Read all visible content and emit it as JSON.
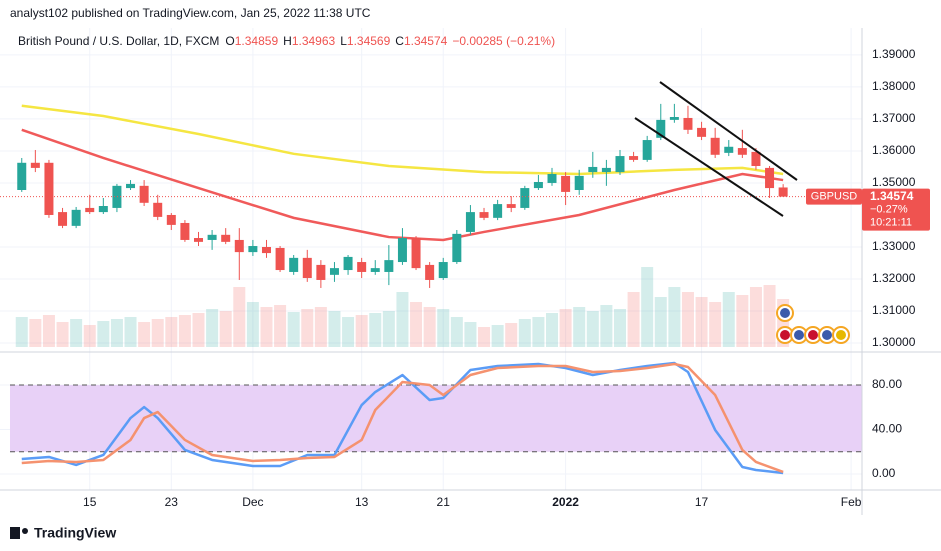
{
  "header": "analyst102 published on TradingView.com, Jan 25, 2022 11:38 UTC",
  "footer": "TradingView",
  "chart_data": [
    {
      "type": "candlestick",
      "title": "British Pound / U.S. Dollar, 1D, FXCM",
      "ohlc_labels": [
        "O",
        "H",
        "L",
        "C"
      ],
      "change": "−0.00285 (−0.21%)",
      "symbol": "GBPUSD",
      "last_change": "−0.27%",
      "countdown": "10:21:11",
      "up_color": "#26a69a",
      "down_color": "#ef5350",
      "open": [
        1.3478,
        1.3563,
        1.3563,
        1.3409,
        1.3366,
        1.3422,
        1.3409,
        1.3422,
        1.3484,
        1.3491,
        1.3438,
        1.34,
        1.3375,
        1.3328,
        1.3322,
        1.3338,
        1.3322,
        1.3284,
        1.33,
        1.3297,
        1.3222,
        1.3266,
        1.3244,
        1.3213,
        1.3228,
        1.3253,
        1.3222,
        1.3222,
        1.3253,
        1.3328,
        1.3244,
        1.3203,
        1.3253,
        1.3347,
        1.3409,
        1.3391,
        1.3434,
        1.3422,
        1.3484,
        1.35,
        1.3522,
        1.3478,
        1.3534,
        1.3534,
        1.3534,
        1.3584,
        1.3572,
        1.3641,
        1.3697,
        1.3703,
        1.3672,
        1.3641,
        1.3594,
        1.3609,
        1.3597,
        1.3547,
        1.34859
      ],
      "high": [
        1.3578,
        1.3603,
        1.3572,
        1.3422,
        1.3425,
        1.3463,
        1.3453,
        1.3497,
        1.3509,
        1.3509,
        1.3463,
        1.3406,
        1.3384,
        1.3347,
        1.3353,
        1.3359,
        1.3359,
        1.3322,
        1.3322,
        1.3303,
        1.3275,
        1.3291,
        1.3259,
        1.3253,
        1.3275,
        1.3266,
        1.3259,
        1.3306,
        1.3359,
        1.3334,
        1.3253,
        1.3266,
        1.3353,
        1.3431,
        1.3422,
        1.3447,
        1.3459,
        1.3491,
        1.3525,
        1.3547,
        1.3534,
        1.3541,
        1.3597,
        1.3572,
        1.3603,
        1.3597,
        1.3647,
        1.3747,
        1.3747,
        1.3741,
        1.3691,
        1.3672,
        1.3634,
        1.3666,
        1.3609,
        1.3553,
        1.34963
      ],
      "low": [
        1.3472,
        1.3534,
        1.3391,
        1.3359,
        1.3359,
        1.3403,
        1.3403,
        1.3409,
        1.3478,
        1.3428,
        1.3384,
        1.3353,
        1.3316,
        1.3303,
        1.3291,
        1.3309,
        1.3197,
        1.3272,
        1.3266,
        1.3222,
        1.3213,
        1.3191,
        1.3172,
        1.3191,
        1.3213,
        1.3203,
        1.3213,
        1.3181,
        1.3244,
        1.3228,
        1.3172,
        1.3197,
        1.3247,
        1.3338,
        1.3384,
        1.3384,
        1.3409,
        1.3416,
        1.3478,
        1.3491,
        1.3431,
        1.3463,
        1.3516,
        1.3491,
        1.3525,
        1.3566,
        1.3566,
        1.3634,
        1.3688,
        1.3653,
        1.3634,
        1.3578,
        1.3584,
        1.3578,
        1.3541,
        1.3453,
        1.34569
      ],
      "close": [
        1.3563,
        1.3547,
        1.34,
        1.3366,
        1.3416,
        1.3409,
        1.3428,
        1.3491,
        1.3497,
        1.3438,
        1.3394,
        1.3369,
        1.3322,
        1.3316,
        1.3338,
        1.3316,
        1.3284,
        1.3303,
        1.3281,
        1.3228,
        1.3266,
        1.3203,
        1.3197,
        1.3234,
        1.3269,
        1.3222,
        1.3234,
        1.3259,
        1.3328,
        1.3234,
        1.3197,
        1.3253,
        1.3341,
        1.3409,
        1.3391,
        1.3434,
        1.3422,
        1.3484,
        1.3503,
        1.3528,
        1.3472,
        1.3522,
        1.355,
        1.3547,
        1.3584,
        1.3572,
        1.3634,
        1.3697,
        1.3706,
        1.3666,
        1.3644,
        1.3588,
        1.3613,
        1.3588,
        1.3553,
        1.3484,
        1.34574
      ],
      "volume": [
        30,
        28,
        32,
        25,
        28,
        22,
        26,
        28,
        30,
        25,
        28,
        30,
        32,
        34,
        38,
        36,
        60,
        45,
        40,
        42,
        35,
        38,
        40,
        36,
        30,
        32,
        34,
        36,
        55,
        45,
        40,
        38,
        30,
        25,
        20,
        22,
        24,
        28,
        30,
        34,
        38,
        40,
        36,
        42,
        38,
        55,
        80,
        50,
        60,
        55,
        50,
        45,
        55,
        52,
        60,
        62,
        48
      ],
      "lines": [
        {
          "color": "#f5e642",
          "x": [
            0,
            6,
            13,
            20,
            27,
            34,
            41,
            48,
            53,
            56
          ],
          "values": [
            1.3741,
            1.3709,
            1.3653,
            1.3591,
            1.3553,
            1.3534,
            1.3528,
            1.3541,
            1.3547,
            1.3528
          ]
        },
        {
          "color": "#f05a5a",
          "x": [
            0,
            6,
            13,
            20,
            27,
            31,
            34,
            41,
            48,
            53,
            56
          ],
          "values": [
            1.3666,
            1.3578,
            1.3484,
            1.3391,
            1.3331,
            1.3322,
            1.3347,
            1.34,
            1.3478,
            1.3528,
            1.3509
          ]
        }
      ],
      "xlim": [
        -1.6,
        61.8
      ],
      "xticks": [
        {
          "value": 5,
          "label": "15"
        },
        {
          "value": 11,
          "label": "23"
        },
        {
          "value": 17,
          "label": "Dec"
        },
        {
          "value": 25,
          "label": "13"
        },
        {
          "value": 31,
          "label": "21"
        },
        {
          "value": 40,
          "label": "2022"
        },
        {
          "value": 50,
          "label": "17"
        },
        {
          "value": 61,
          "label": "Feb"
        }
      ],
      "ylim": [
        1.2972,
        1.3984
      ],
      "yticks": [
        {
          "value": 1.39,
          "label": "1.39000"
        },
        {
          "value": 1.38,
          "label": "1.38000"
        },
        {
          "value": 1.37,
          "label": "1.37000"
        },
        {
          "value": 1.36,
          "label": "1.36000"
        },
        {
          "value": 1.35,
          "label": "1.35000"
        },
        {
          "value": 1.33,
          "label": "1.33000"
        },
        {
          "value": 1.32,
          "label": "1.32000"
        },
        {
          "value": 1.31,
          "label": "1.31000"
        },
        {
          "value": 1.3,
          "label": "1.30000"
        }
      ],
      "grid": true
    },
    {
      "type": "line",
      "lines": [
        {
          "color": "#5b9cf6",
          "x": [
            0,
            2,
            4,
            6,
            8,
            9,
            10,
            12,
            14,
            17,
            19,
            21,
            23,
            25,
            26,
            28,
            30,
            31,
            33,
            35,
            38,
            40,
            42,
            44,
            46,
            48,
            49,
            51,
            53,
            54,
            56
          ],
          "values": [
            13.5,
            15.3,
            8.1,
            17.1,
            50.3,
            60.2,
            50.3,
            21.6,
            12.6,
            7.2,
            7.2,
            17.1,
            17.1,
            62.0,
            73.7,
            89.0,
            66.5,
            68.3,
            93.5,
            97.1,
            98.9,
            95.3,
            89.0,
            93.5,
            97.1,
            99.8,
            91.7,
            39.6,
            6.3,
            3.6,
            0.9
          ]
        },
        {
          "color": "#f5926f",
          "x": [
            0,
            2,
            4,
            6,
            8,
            9,
            10,
            12,
            14,
            17,
            19,
            21,
            23,
            25,
            26,
            28,
            30,
            31,
            33,
            35,
            38,
            40,
            42,
            44,
            46,
            48,
            49,
            51,
            53,
            54,
            56
          ],
          "values": [
            9.9,
            11.7,
            10.8,
            12.6,
            30.6,
            50.3,
            55.7,
            30.6,
            17.1,
            11.7,
            12.6,
            14.4,
            15.3,
            30.6,
            57.5,
            82.7,
            80.0,
            71.0,
            89.0,
            95.3,
            97.1,
            97.1,
            91.7,
            92.6,
            95.3,
            98.9,
            96.2,
            71.0,
            21.6,
            10.8,
            1.8
          ]
        }
      ],
      "band": [
        20,
        80
      ],
      "band_color": "#e8d1f7",
      "xlim": [
        -1.6,
        61.8
      ],
      "ylim": [
        -14.4,
        107
      ],
      "yticks": [
        {
          "value": 80,
          "label": "80.00"
        },
        {
          "value": 40,
          "label": "40.00"
        },
        {
          "value": 0,
          "label": "0.00"
        }
      ],
      "grid": true
    }
  ]
}
